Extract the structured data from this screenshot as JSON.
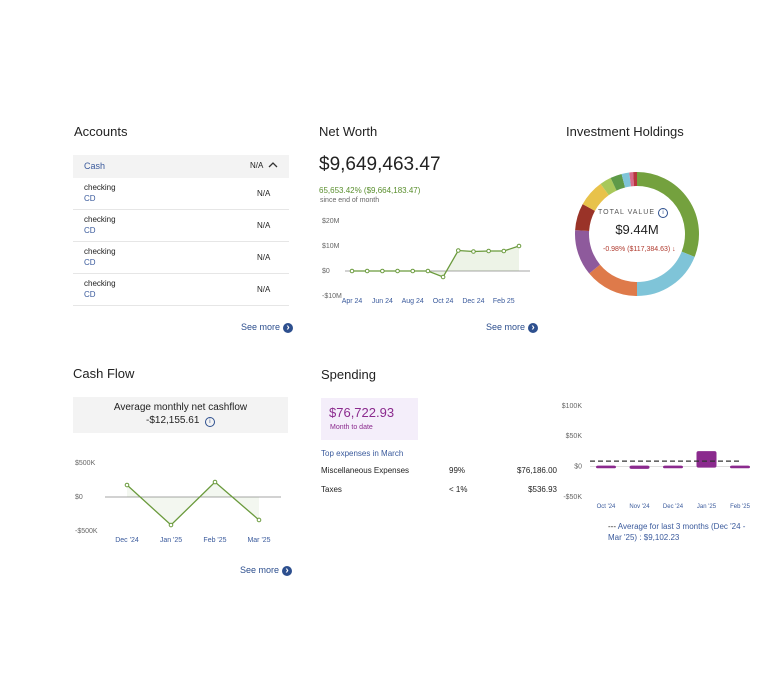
{
  "accounts": {
    "title": "Accounts",
    "group": {
      "name": "Cash",
      "value": "N/A"
    },
    "rows": [
      {
        "name": "checking",
        "type": "CD",
        "value": "N/A"
      },
      {
        "name": "checking",
        "type": "CD",
        "value": "N/A"
      },
      {
        "name": "checking",
        "type": "CD",
        "value": "N/A"
      },
      {
        "name": "checking",
        "type": "CD",
        "value": "N/A"
      }
    ],
    "see_more": "See more"
  },
  "net_worth": {
    "title": "Net Worth",
    "value": "$9,649,463.47",
    "change": "65,653.42% ($9,664,183.47)",
    "since": "since end of month",
    "see_more": "See more",
    "chart": {
      "type": "line",
      "categories": [
        "Apr 24",
        null,
        "Jun 24",
        null,
        "Aug 24",
        null,
        "Oct 24",
        null,
        "Dec 24",
        null,
        "Feb 25",
        null
      ],
      "values": [
        0,
        0,
        0,
        0,
        0,
        0,
        -2400000,
        8200000,
        7800000,
        8000000,
        8000000,
        10000000
      ],
      "color": "#6a9a3c",
      "ylim": [
        -10000000,
        20000000
      ],
      "yticks": [
        {
          "value": 20000000,
          "label": "$20M"
        },
        {
          "value": 10000000,
          "label": "$10M"
        },
        {
          "value": 0,
          "label": "$0"
        },
        {
          "value": -10000000,
          "label": "-$10M"
        }
      ]
    }
  },
  "investment_holdings": {
    "title": "Investment Holdings",
    "total_label": "TOTAL VALUE",
    "total_value": "$9.44M",
    "change": "-0.98% ($117,384.63)",
    "chart": {
      "type": "donut",
      "values": [
        31,
        19,
        14,
        12,
        7,
        7,
        3,
        3,
        2,
        1,
        1
      ],
      "colors": [
        "#74a13e",
        "#7fc4d8",
        "#de7a4a",
        "#8e5a9c",
        "#9a3328",
        "#e8c24a",
        "#a8c85a",
        "#5e9a48",
        "#7fc4d8",
        "#d76a8a",
        "#b8363e"
      ]
    }
  },
  "cash_flow": {
    "title": "Cash Flow",
    "average_label": "Average monthly net cashflow",
    "average_value": "-$12,155.61",
    "see_more": "See more",
    "chart": {
      "type": "line",
      "categories": [
        "Dec '24",
        "Jan '25",
        "Feb '25",
        "Mar '25"
      ],
      "values": [
        176000,
        -412000,
        220000,
        -338000
      ],
      "color": "#6a9a3c",
      "ylim": [
        -500000,
        500000
      ],
      "yticks": [
        {
          "value": 500000,
          "label": "$500K"
        },
        {
          "value": 0,
          "label": "$0"
        },
        {
          "value": -500000,
          "label": "-$500K"
        }
      ]
    }
  },
  "spending": {
    "title": "Spending",
    "value": "$76,722.93",
    "value_caption": "Month to date",
    "top_label": "Top expenses in March",
    "rows": [
      [
        "Miscellaneous Expenses",
        "99%",
        "$76,186.00"
      ],
      [
        "Taxes",
        "< 1%",
        "$536.93"
      ]
    ],
    "chart": {
      "type": "bar",
      "categories": [
        "Oct '24",
        "Nov '24",
        "Dec '24",
        "Jan '25",
        "Feb '25"
      ],
      "values": [
        -1000,
        -2000,
        -1000,
        24000,
        -1000
      ],
      "color": "#8b2a8e",
      "ylim": [
        -50000,
        100000
      ],
      "yticks": [
        {
          "value": 100000,
          "label": "$100K"
        },
        {
          "value": 50000,
          "label": "$50K"
        },
        {
          "value": 0,
          "label": "$0"
        },
        {
          "value": -50000,
          "label": "-$50K"
        }
      ],
      "average": 9102.23,
      "average_label": "Average for last 3 months (Dec '24 - Mar '25) : $9,102.23"
    }
  }
}
